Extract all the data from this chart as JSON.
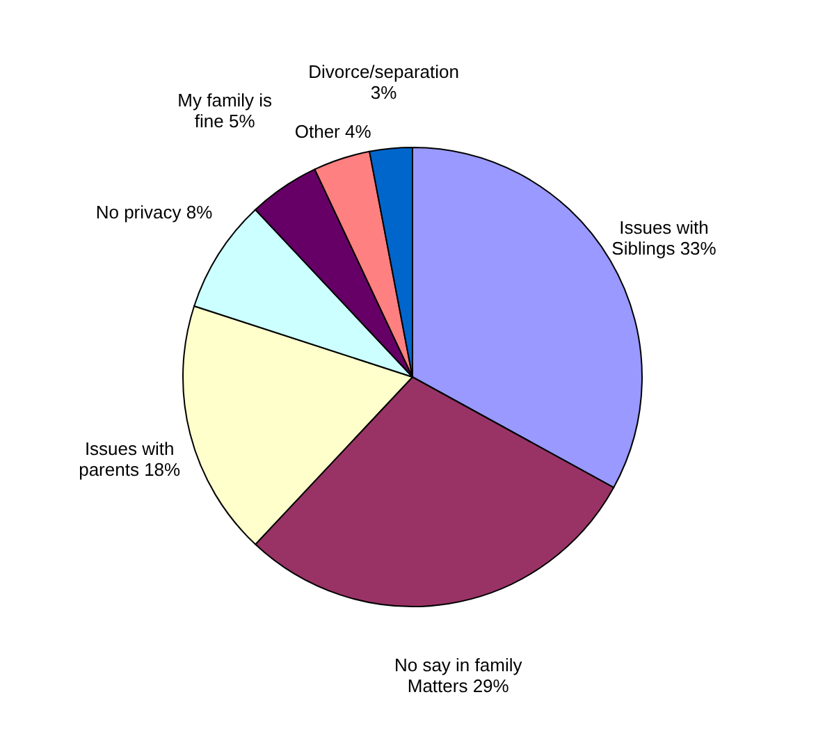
{
  "chart_data": {
    "type": "pie",
    "categories": [
      "Issues with Siblings",
      "No say in family Matters",
      "Issues with parents",
      "No privacy",
      "My family is fine",
      "Other",
      "Divorce/separation"
    ],
    "values": [
      33,
      29,
      18,
      8,
      5,
      4,
      3
    ],
    "value_labels": [
      "33%",
      "29%",
      "18%",
      "8%",
      "5%",
      "4%",
      "3%"
    ],
    "colors": [
      "#9999ff",
      "#993366",
      "#ffffcc",
      "#ccffff",
      "#660066",
      "#ff8080",
      "#0066cc"
    ]
  }
}
